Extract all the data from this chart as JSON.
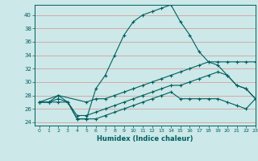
{
  "title": "",
  "xlabel": "Humidex (Indice chaleur)",
  "ylabel": "",
  "bg_color": "#cce8e8",
  "line_color": "#005f5f",
  "grid_color": "#d4a0a0",
  "xlim": [
    -0.5,
    23
  ],
  "ylim": [
    23.5,
    41.5
  ],
  "xticks": [
    0,
    1,
    2,
    3,
    4,
    5,
    6,
    7,
    8,
    9,
    10,
    11,
    12,
    13,
    14,
    15,
    16,
    17,
    18,
    19,
    20,
    21,
    22,
    23
  ],
  "yticks": [
    24,
    26,
    28,
    30,
    32,
    34,
    36,
    38,
    40
  ],
  "line1_x": [
    0,
    1,
    2,
    3,
    4,
    5,
    6,
    7,
    8,
    9,
    10,
    11,
    12,
    13,
    14,
    15,
    16,
    17,
    18,
    19,
    20,
    21,
    22,
    23
  ],
  "line1_y": [
    27.0,
    27.0,
    28.0,
    27.0,
    24.5,
    24.5,
    29.0,
    31.0,
    34.0,
    37.0,
    39.0,
    40.0,
    40.5,
    41.0,
    41.5,
    39.0,
    37.0,
    34.5,
    33.0,
    32.5,
    31.0,
    29.5,
    29.0,
    27.5
  ],
  "line2_x": [
    0,
    2,
    5,
    6,
    7,
    8,
    9,
    10,
    11,
    12,
    13,
    14,
    15,
    16,
    17,
    18,
    19,
    20,
    21,
    22,
    23
  ],
  "line2_y": [
    27.0,
    28.0,
    27.0,
    27.5,
    27.5,
    28.0,
    28.5,
    29.0,
    29.5,
    30.0,
    30.5,
    31.0,
    31.5,
    32.0,
    32.5,
    33.0,
    33.0,
    33.0,
    33.0,
    33.0,
    33.0
  ],
  "line3_x": [
    0,
    1,
    2,
    3,
    4,
    5,
    6,
    7,
    8,
    9,
    10,
    11,
    12,
    13,
    14,
    15,
    16,
    17,
    18,
    19,
    20,
    21,
    22,
    23
  ],
  "line3_y": [
    27.0,
    27.0,
    27.5,
    27.0,
    25.0,
    25.0,
    25.5,
    26.0,
    26.5,
    27.0,
    27.5,
    28.0,
    28.5,
    29.0,
    29.5,
    29.5,
    30.0,
    30.5,
    31.0,
    31.5,
    31.0,
    29.5,
    29.0,
    27.5
  ],
  "line4_x": [
    0,
    1,
    2,
    3,
    4,
    5,
    6,
    7,
    8,
    9,
    10,
    11,
    12,
    13,
    14,
    15,
    16,
    17,
    18,
    19,
    20,
    21,
    22,
    23
  ],
  "line4_y": [
    27.0,
    27.0,
    27.0,
    27.0,
    24.5,
    24.5,
    24.5,
    25.0,
    25.5,
    26.0,
    26.5,
    27.0,
    27.5,
    28.0,
    28.5,
    27.5,
    27.5,
    27.5,
    27.5,
    27.5,
    27.0,
    26.5,
    26.0,
    27.5
  ]
}
